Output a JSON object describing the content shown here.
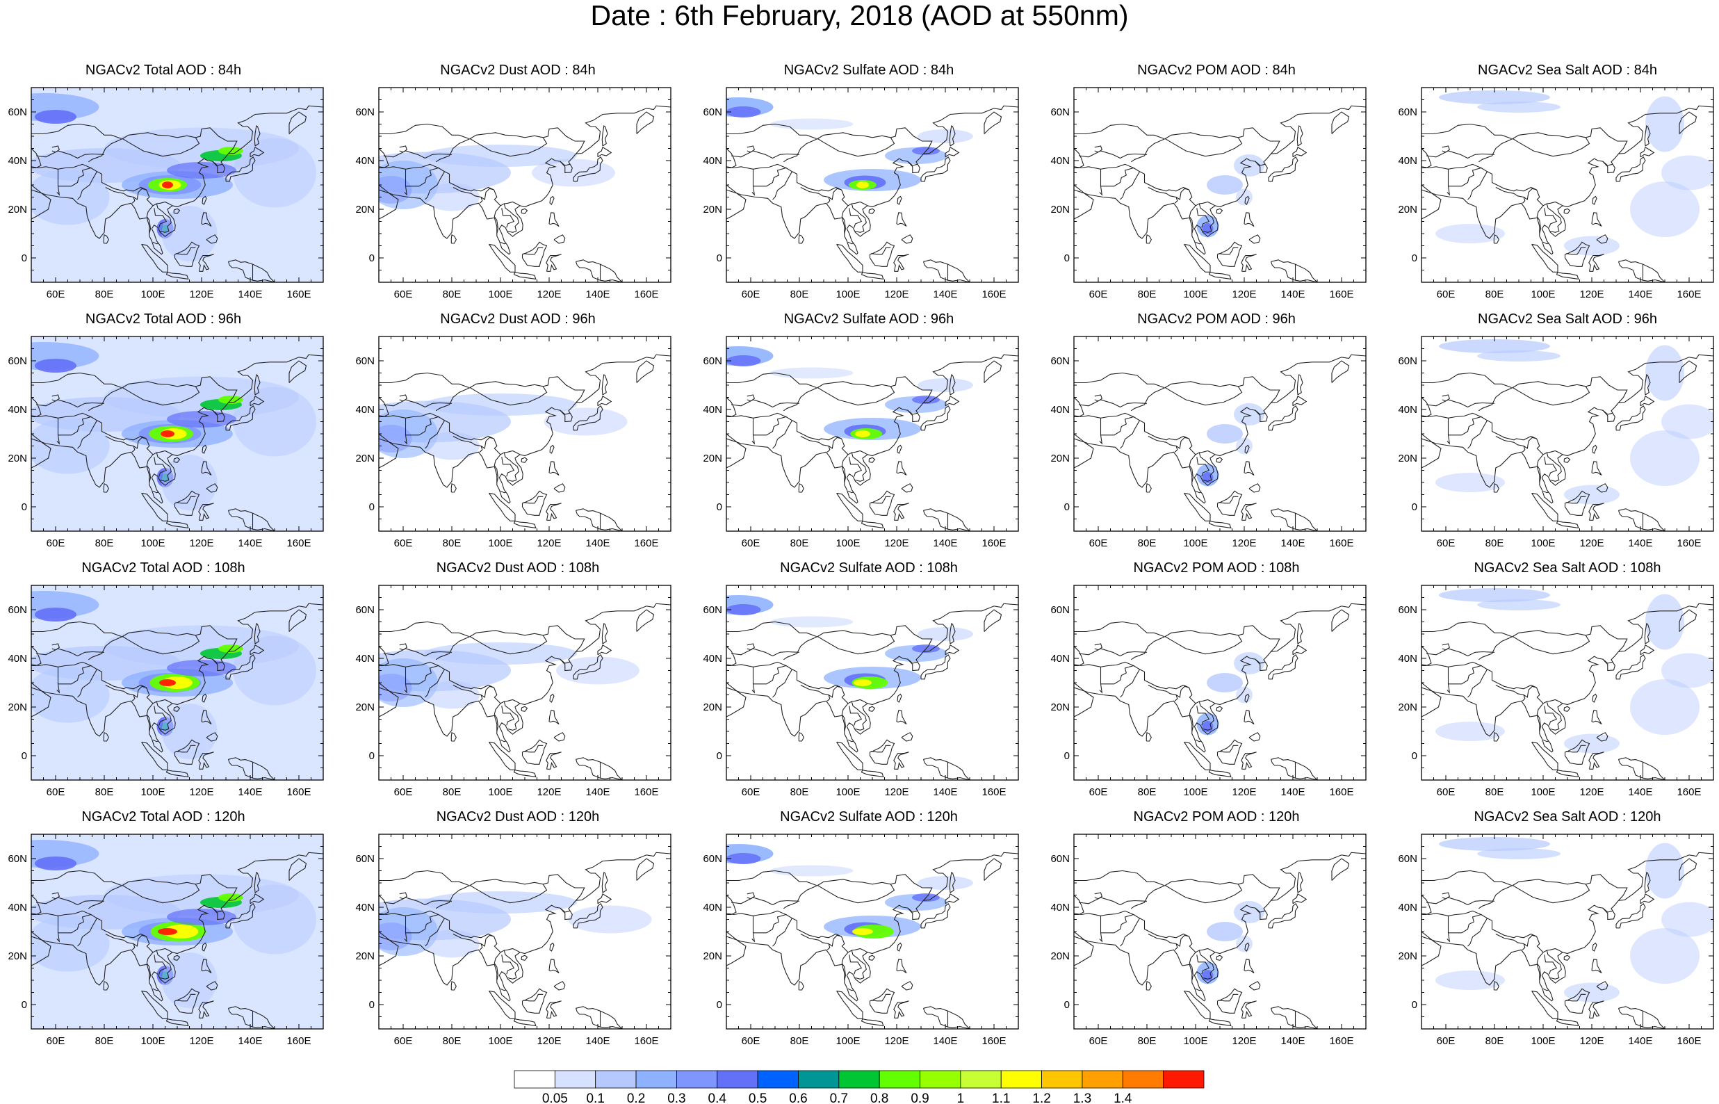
{
  "title": "Date : 6th February, 2018 (AOD at 550nm)",
  "lon_ticks": [
    "60E",
    "80E",
    "100E",
    "120E",
    "140E",
    "160E"
  ],
  "lat_ticks": [
    "60N",
    "40N",
    "20N",
    "0"
  ],
  "panels": [
    [
      {
        "title": "NGACv2 Total AOD : 84h",
        "species": "total",
        "hour": 84
      },
      {
        "title": "NGACv2 Dust AOD : 84h",
        "species": "dust",
        "hour": 84
      },
      {
        "title": "NGACv2 Sulfate AOD : 84h",
        "species": "sulfate",
        "hour": 84
      },
      {
        "title": "NGACv2 POM AOD : 84h",
        "species": "pom",
        "hour": 84
      },
      {
        "title": "NGACv2 Sea Salt AOD : 84h",
        "species": "seasalt",
        "hour": 84
      }
    ],
    [
      {
        "title": "NGACv2 Total AOD : 96h",
        "species": "total",
        "hour": 96
      },
      {
        "title": "NGACv2 Dust AOD : 96h",
        "species": "dust",
        "hour": 96
      },
      {
        "title": "NGACv2 Sulfate AOD : 96h",
        "species": "sulfate",
        "hour": 96
      },
      {
        "title": "NGACv2 POM AOD : 96h",
        "species": "pom",
        "hour": 96
      },
      {
        "title": "NGACv2 Sea Salt AOD : 96h",
        "species": "seasalt",
        "hour": 96
      }
    ],
    [
      {
        "title": "NGACv2 Total AOD : 108h",
        "species": "total",
        "hour": 108
      },
      {
        "title": "NGACv2 Dust AOD : 108h",
        "species": "dust",
        "hour": 108
      },
      {
        "title": "NGACv2 Sulfate AOD : 108h",
        "species": "sulfate",
        "hour": 108
      },
      {
        "title": "NGACv2 POM AOD : 108h",
        "species": "pom",
        "hour": 108
      },
      {
        "title": "NGACv2 Sea Salt AOD : 108h",
        "species": "seasalt",
        "hour": 108
      }
    ],
    [
      {
        "title": "NGACv2 Total AOD : 120h",
        "species": "total",
        "hour": 120
      },
      {
        "title": "NGACv2 Dust AOD : 120h",
        "species": "dust",
        "hour": 120
      },
      {
        "title": "NGACv2 Sulfate AOD : 120h",
        "species": "sulfate",
        "hour": 120
      },
      {
        "title": "NGACv2 POM AOD : 120h",
        "species": "pom",
        "hour": 120
      },
      {
        "title": "NGACv2 Sea Salt  AOD : 120h",
        "species": "seasalt",
        "hour": 120
      }
    ]
  ],
  "colorbar": {
    "labels": [
      "0.05",
      "0.1",
      "0.2",
      "0.3",
      "0.4",
      "0.5",
      "0.6",
      "0.7",
      "0.8",
      "0.9",
      "1",
      "1.1",
      "1.2",
      "1.3",
      "1.4"
    ],
    "colors": [
      "#ffffff",
      "#d6e2ff",
      "#b5c9ff",
      "#8eb2ff",
      "#7f96ff",
      "#6370f8",
      "#0063ff",
      "#009696",
      "#00c633",
      "#63ff00",
      "#96ff00",
      "#c6ff33",
      "#ffff00",
      "#ffc600",
      "#ffa000",
      "#ff7c00",
      "#ff1900"
    ]
  }
}
